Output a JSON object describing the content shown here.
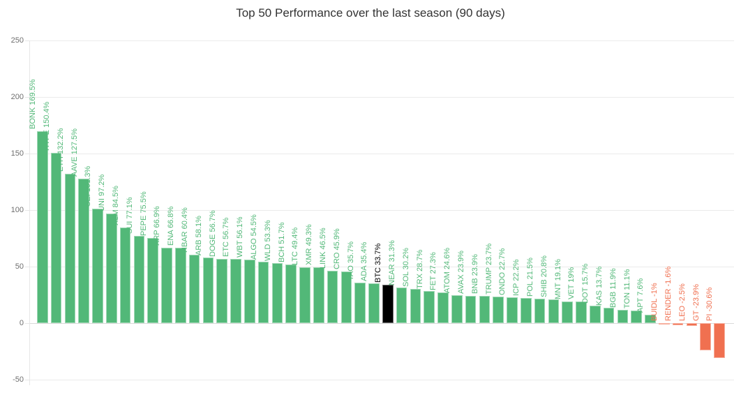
{
  "chart_data": {
    "type": "bar",
    "title": "Top 50 Performance over the last season (90 days)",
    "xlabel": "",
    "ylabel": "",
    "ylim": [
      -50,
      250
    ],
    "yticks": [
      250,
      200,
      150,
      100,
      50,
      0,
      -50
    ],
    "grid": true,
    "legend": false,
    "highlight_category": "BTC",
    "categories": [
      "BONK",
      "HYPE",
      "ETH",
      "AAVE",
      "SEI",
      "UNI",
      "XLM",
      "SUI",
      "PEPE",
      "XRP",
      "ENA",
      "HBAR",
      "ARB",
      "DOGE",
      "ETC",
      "WBT",
      "ALGO",
      "WLD",
      "BCH",
      "LTC",
      "XMR",
      "LINK",
      "CRO",
      "TAO",
      "ADA",
      "BTC",
      "NEAR",
      "SOL",
      "TRX",
      "FET",
      "ATOM",
      "AVAX",
      "BNB",
      "TRUMP",
      "ONDO",
      "ICP",
      "POL",
      "SHIB",
      "MNT",
      "VET",
      "DOT",
      "KAS",
      "BGB",
      "TON",
      "APT",
      "BUIDL",
      "RENDER",
      "LEO",
      "GT",
      "PI"
    ],
    "values": [
      169.5,
      150.4,
      132.2,
      127.5,
      101.3,
      97.2,
      84.5,
      77.1,
      75.5,
      66.9,
      66.8,
      60.4,
      58.1,
      56.7,
      56.7,
      56.1,
      54.5,
      53.3,
      51.7,
      49.4,
      49.3,
      46.5,
      45.9,
      35.7,
      35.4,
      33.7,
      31.3,
      30.2,
      28.7,
      27.3,
      24.6,
      23.9,
      23.9,
      23.7,
      22.7,
      22.2,
      21.5,
      20.8,
      19.1,
      19,
      15.7,
      13.7,
      11.9,
      11.1,
      7.6,
      -1,
      -1.6,
      -2.5,
      -23.9,
      -30.6
    ],
    "bar_labels": [
      "BONK 169.5%",
      "HYPE 150.4%",
      "ETH 132.2%",
      "AAVE 127.5%",
      "SEI 101.3%",
      "UNI 97.2%",
      "XLM 84.5%",
      "SUI 77.1%",
      "PEPE 75.5%",
      "XRP 66.9%",
      "ENA 66.8%",
      "HBAR 60.4%",
      "ARB 58.1%",
      "DOGE 56.7%",
      "ETC 56.7%",
      "WBT 56.1%",
      "ALGO 54.5%",
      "WLD 53.3%",
      "BCH 51.7%",
      "LTC 49.4%",
      "XMR 49.3%",
      "LINK 46.5%",
      "CRO 45.9%",
      "TAO 35.7%",
      "ADA 35.4%",
      "BTC 33.7%",
      "NEAR 31.3%",
      "SOL 30.2%",
      "TRX 28.7%",
      "FET 27.3%",
      "ATOM 24.6%",
      "AVAX 23.9%",
      "BNB 23.9%",
      "TRUMP 23.7%",
      "ONDO 22.7%",
      "ICP 22.2%",
      "POL 21.5%",
      "SHIB 20.8%",
      "MNT 19.1%",
      "VET 19%",
      "DOT 15.7%",
      "KAS 13.7%",
      "BGB 11.9%",
      "TON 11.1%",
      "APT 7.6%",
      "BUIDL -1%",
      "RENDER -1.6%",
      "LEO -2.5%",
      "GT -23.9%",
      "PI -30.6%"
    ],
    "colors": {
      "positive": "#52b878",
      "negative": "#f07050",
      "highlight": "#000000",
      "grid": "#ebebeb",
      "zero_line": "#d9d9d9",
      "axis": "#e6e6e6",
      "tick_label": "#6e6e6e",
      "title": "#333333",
      "background": "#ffffff"
    }
  }
}
